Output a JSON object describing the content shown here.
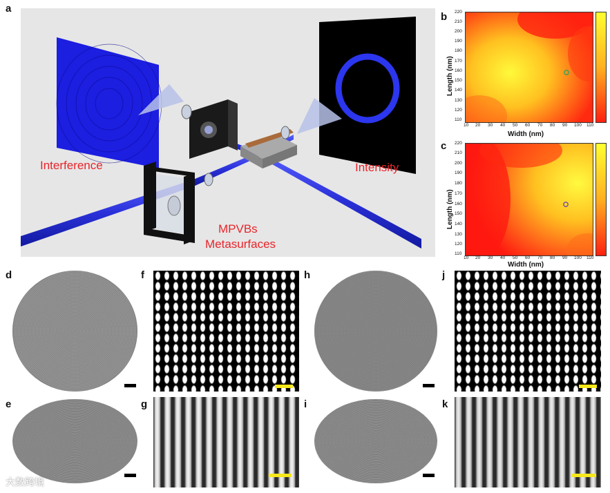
{
  "panels": {
    "a": "a",
    "b": "b",
    "c": "c",
    "d": "d",
    "e": "e",
    "f": "f",
    "g": "g",
    "h": "h",
    "i": "i",
    "j": "j",
    "k": "k"
  },
  "setup": {
    "interference_label": "Interference",
    "intensity_label": "Intensity",
    "device_label_line1": "MPVBs",
    "device_label_line2": "Metasurfaces"
  },
  "heatmaps": [
    {
      "ylabel": "Length (nm)",
      "xlabel": "Width (nm)",
      "yticks": [
        "220",
        "210",
        "200",
        "190",
        "180",
        "170",
        "160",
        "150",
        "140",
        "130",
        "120",
        "110"
      ],
      "xticks": [
        "10",
        "20",
        "30",
        "40",
        "50",
        "60",
        "70",
        "80",
        "90",
        "100",
        "110"
      ]
    },
    {
      "ylabel": "Length (nm)",
      "xlabel": "Width (nm)",
      "yticks": [
        "220",
        "210",
        "200",
        "190",
        "180",
        "170",
        "160",
        "150",
        "140",
        "130",
        "120",
        "110"
      ],
      "xticks": [
        "10",
        "20",
        "30",
        "40",
        "50",
        "60",
        "70",
        "80",
        "90",
        "100",
        "110"
      ]
    }
  ],
  "colors": {
    "beam": "#2b33e6",
    "label_red": "#e8242a",
    "scalebar_yellow": "#f7e81b",
    "scalebar_black": "#000000"
  },
  "watermark": "大数跨境"
}
